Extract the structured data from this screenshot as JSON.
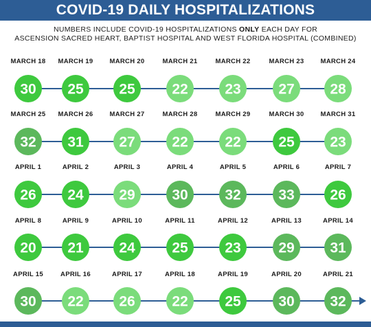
{
  "title": "COVID-19 DAILY HOSPITALIZATIONS",
  "subtitle": {
    "line1_before": "NUMBERS INCLUDE COVID-19 HOSPITALIZATIONS ",
    "line1_emphasis": "ONLY",
    "line1_after": " EACH DAY FOR",
    "line2": "ASCENSION SACRED HEART, BAPTIST HOSPITAL AND WEST FLORIDA HOSPITAL (COMBINED)"
  },
  "colors": {
    "title_bar": "#2d5d95",
    "connector": "#2d5d95",
    "shades": {
      "dark": "#5cb85c",
      "bright": "#3ec93e",
      "light": "#7bdc7b"
    }
  },
  "chart_data": {
    "type": "table",
    "title": "COVID-19 DAILY HOSPITALIZATIONS",
    "rows": [
      [
        {
          "date": "MARCH 18",
          "value": 30,
          "shade": "bright"
        },
        {
          "date": "MARCH 19",
          "value": 25,
          "shade": "bright"
        },
        {
          "date": "MARCH 20",
          "value": 25,
          "shade": "bright"
        },
        {
          "date": "MARCH 21",
          "value": 22,
          "shade": "light"
        },
        {
          "date": "MARCH 22",
          "value": 23,
          "shade": "light"
        },
        {
          "date": "MARCH 23",
          "value": 27,
          "shade": "light"
        },
        {
          "date": "MARCH 24",
          "value": 28,
          "shade": "light"
        }
      ],
      [
        {
          "date": "MARCH 25",
          "value": 32,
          "shade": "dark"
        },
        {
          "date": "MARCH 26",
          "value": 31,
          "shade": "bright"
        },
        {
          "date": "MARCH 27",
          "value": 27,
          "shade": "light"
        },
        {
          "date": "MARCH 28",
          "value": 22,
          "shade": "light"
        },
        {
          "date": "MARCH 29",
          "value": 22,
          "shade": "light"
        },
        {
          "date": "MARCH 30",
          "value": 25,
          "shade": "bright"
        },
        {
          "date": "MARCH 31",
          "value": 23,
          "shade": "light"
        }
      ],
      [
        {
          "date": "APRIL 1",
          "value": 26,
          "shade": "bright"
        },
        {
          "date": "APRIL 2",
          "value": 24,
          "shade": "bright"
        },
        {
          "date": "APRIL 3",
          "value": 29,
          "shade": "light"
        },
        {
          "date": "APRIL 4",
          "value": 30,
          "shade": "dark"
        },
        {
          "date": "APRIL 5",
          "value": 32,
          "shade": "dark"
        },
        {
          "date": "APRIL 6",
          "value": 33,
          "shade": "dark"
        },
        {
          "date": "APRIL 7",
          "value": 26,
          "shade": "bright"
        }
      ],
      [
        {
          "date": "APRIL 8",
          "value": 20,
          "shade": "bright"
        },
        {
          "date": "APRIL 9",
          "value": 21,
          "shade": "bright"
        },
        {
          "date": "APRIL 10",
          "value": 24,
          "shade": "bright"
        },
        {
          "date": "APRIL 11",
          "value": 25,
          "shade": "bright"
        },
        {
          "date": "APRIL 12",
          "value": 23,
          "shade": "bright"
        },
        {
          "date": "APRIL 13",
          "value": 29,
          "shade": "dark"
        },
        {
          "date": "APRIL 14",
          "value": 31,
          "shade": "dark"
        }
      ],
      [
        {
          "date": "APRIL 15",
          "value": 30,
          "shade": "dark"
        },
        {
          "date": "APRIL 16",
          "value": 22,
          "shade": "light"
        },
        {
          "date": "APRIL 17",
          "value": 26,
          "shade": "light"
        },
        {
          "date": "APRIL 18",
          "value": 22,
          "shade": "light"
        },
        {
          "date": "APRIL 19",
          "value": 25,
          "shade": "bright"
        },
        {
          "date": "APRIL 20",
          "value": 30,
          "shade": "dark"
        },
        {
          "date": "APRIL 21",
          "value": 32,
          "shade": "dark"
        }
      ]
    ]
  }
}
